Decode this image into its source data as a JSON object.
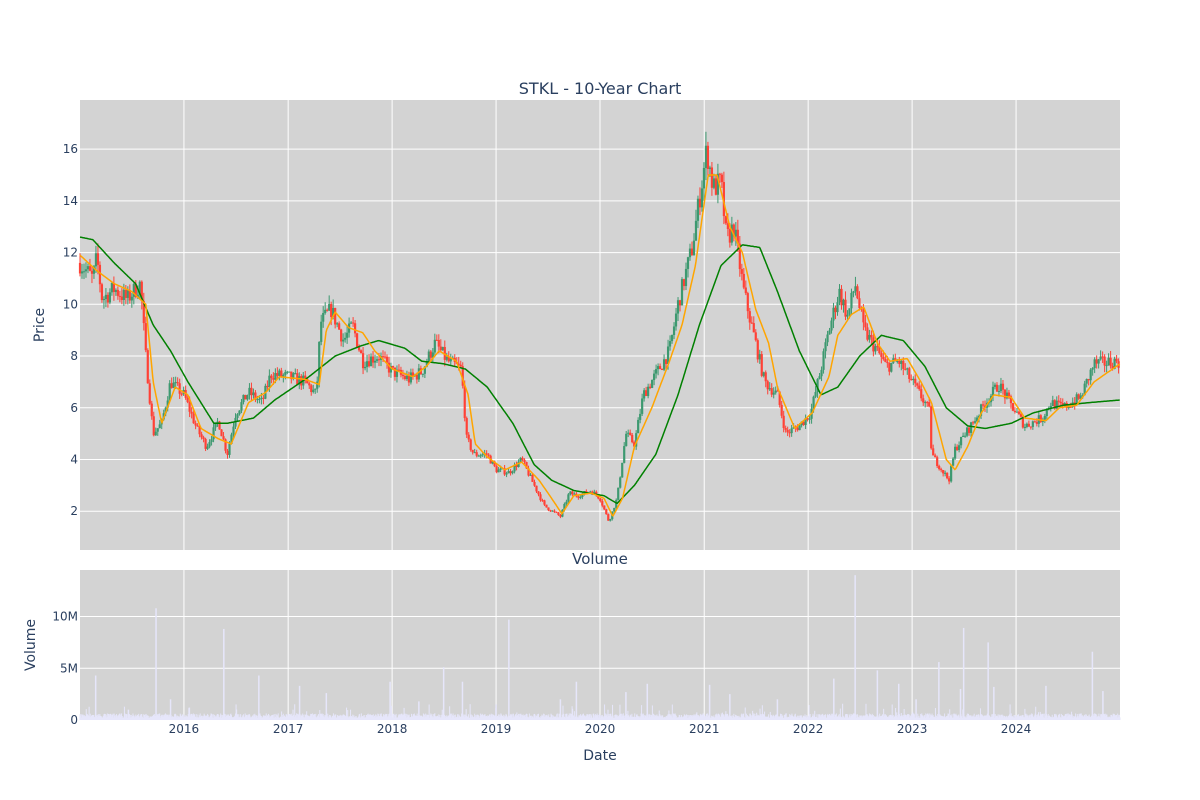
{
  "chart_data": [
    {
      "type": "candlestick",
      "title": "STKL - 10-Year Chart",
      "xlabel": "",
      "ylabel": "Price",
      "xlim": [
        "2015-01-01",
        "2024-12-31"
      ],
      "ylim": [
        0.5,
        17.9
      ],
      "y_ticks": [
        "2",
        "4",
        "6",
        "8",
        "10",
        "12",
        "14",
        "16"
      ],
      "grid": true,
      "plot_background": "#d3d3d3",
      "colors": {
        "up": "#3d9970",
        "down": "#ff4136",
        "ma_short": "#ffa500",
        "ma_long": "#008000"
      },
      "close_anchors": [
        [
          "2015-01-01",
          11.6
        ],
        [
          "2015-02-15",
          11.0
        ],
        [
          "2015-03-01",
          11.8
        ],
        [
          "2015-03-20",
          10.2
        ],
        [
          "2015-05-01",
          10.6
        ],
        [
          "2015-06-15",
          10.2
        ],
        [
          "2015-08-01",
          10.8
        ],
        [
          "2015-08-20",
          8.0
        ],
        [
          "2015-09-15",
          5.0
        ],
        [
          "2015-10-15",
          5.4
        ],
        [
          "2015-11-15",
          7.0
        ],
        [
          "2016-01-01",
          6.5
        ],
        [
          "2016-02-15",
          5.2
        ],
        [
          "2016-03-20",
          4.5
        ],
        [
          "2016-05-01",
          5.5
        ],
        [
          "2016-06-01",
          4.2
        ],
        [
          "2016-07-01",
          5.8
        ],
        [
          "2016-08-15",
          6.6
        ],
        [
          "2016-10-01",
          6.2
        ],
        [
          "2016-11-01",
          7.3
        ],
        [
          "2017-01-01",
          7.2
        ],
        [
          "2017-03-01",
          7.0
        ],
        [
          "2017-04-10",
          6.5
        ],
        [
          "2017-04-25",
          9.3
        ],
        [
          "2017-06-01",
          9.8
        ],
        [
          "2017-07-15",
          8.6
        ],
        [
          "2017-08-15",
          9.2
        ],
        [
          "2017-09-20",
          7.8
        ],
        [
          "2017-11-15",
          8.0
        ],
        [
          "2018-01-01",
          7.4
        ],
        [
          "2018-03-01",
          7.1
        ],
        [
          "2018-04-15",
          7.4
        ],
        [
          "2018-06-01",
          8.5
        ],
        [
          "2018-07-15",
          7.8
        ],
        [
          "2018-09-01",
          7.5
        ],
        [
          "2018-09-20",
          4.8
        ],
        [
          "2018-10-15",
          4.2
        ],
        [
          "2018-12-01",
          4.2
        ],
        [
          "2019-01-01",
          3.6
        ],
        [
          "2019-02-15",
          3.5
        ],
        [
          "2019-04-01",
          4.0
        ],
        [
          "2019-05-15",
          3.0
        ],
        [
          "2019-06-20",
          2.2
        ],
        [
          "2019-08-15",
          1.8
        ],
        [
          "2019-09-15",
          2.7
        ],
        [
          "2019-10-15",
          2.6
        ],
        [
          "2019-12-01",
          2.8
        ],
        [
          "2020-01-01",
          2.5
        ],
        [
          "2020-02-01",
          1.6
        ],
        [
          "2020-03-01",
          2.5
        ],
        [
          "2020-04-01",
          5.0
        ],
        [
          "2020-05-01",
          4.6
        ],
        [
          "2020-06-01",
          6.5
        ],
        [
          "2020-08-01",
          7.6
        ],
        [
          "2020-09-01",
          8.2
        ],
        [
          "2020-10-01",
          10.0
        ],
        [
          "2020-11-20",
          12.2
        ],
        [
          "2021-01-10",
          16.0
        ],
        [
          "2021-02-01",
          14.5
        ],
        [
          "2021-03-01",
          14.7
        ],
        [
          "2021-03-20",
          12.5
        ],
        [
          "2021-04-15",
          13.0
        ],
        [
          "2021-05-20",
          10.5
        ],
        [
          "2021-06-20",
          9.0
        ],
        [
          "2021-08-01",
          7.0
        ],
        [
          "2021-09-15",
          6.5
        ],
        [
          "2021-10-15",
          5.0
        ],
        [
          "2021-12-01",
          5.3
        ],
        [
          "2022-01-10",
          5.8
        ],
        [
          "2022-02-15",
          7.5
        ],
        [
          "2022-03-15",
          9.0
        ],
        [
          "2022-04-20",
          10.5
        ],
        [
          "2022-05-20",
          9.5
        ],
        [
          "2022-06-15",
          10.8
        ],
        [
          "2022-07-15",
          9.0
        ],
        [
          "2022-09-01",
          8.2
        ],
        [
          "2022-10-01",
          7.6
        ],
        [
          "2022-11-15",
          7.8
        ],
        [
          "2023-01-01",
          7.0
        ],
        [
          "2023-02-15",
          6.2
        ],
        [
          "2023-03-05",
          5.8
        ],
        [
          "2023-03-10",
          4.2
        ],
        [
          "2023-05-10",
          3.2
        ],
        [
          "2023-06-01",
          4.4
        ],
        [
          "2023-08-01",
          5.4
        ],
        [
          "2023-09-15",
          6.2
        ],
        [
          "2023-11-01",
          6.9
        ],
        [
          "2023-12-15",
          6.1
        ],
        [
          "2024-02-01",
          5.3
        ],
        [
          "2024-04-01",
          5.6
        ],
        [
          "2024-05-01",
          6.2
        ],
        [
          "2024-06-15",
          6.0
        ],
        [
          "2024-08-15",
          6.4
        ],
        [
          "2024-10-01",
          7.7
        ],
        [
          "2024-12-31",
          7.8
        ]
      ],
      "moving_average_short": [
        [
          "2015-01-01",
          11.9
        ],
        [
          "2015-03-01",
          11.3
        ],
        [
          "2015-05-01",
          10.8
        ],
        [
          "2015-07-01",
          10.5
        ],
        [
          "2015-08-20",
          10.0
        ],
        [
          "2015-09-15",
          7.0
        ],
        [
          "2015-10-15",
          5.4
        ],
        [
          "2015-12-01",
          6.8
        ],
        [
          "2016-01-15",
          6.5
        ],
        [
          "2016-03-01",
          5.2
        ],
        [
          "2016-05-01",
          4.8
        ],
        [
          "2016-06-15",
          4.6
        ],
        [
          "2016-08-15",
          6.2
        ],
        [
          "2016-10-15",
          6.6
        ],
        [
          "2016-12-01",
          7.2
        ],
        [
          "2017-03-01",
          7.1
        ],
        [
          "2017-04-20",
          6.9
        ],
        [
          "2017-05-15",
          9.0
        ],
        [
          "2017-06-15",
          9.7
        ],
        [
          "2017-08-01",
          9.1
        ],
        [
          "2017-09-20",
          8.9
        ],
        [
          "2017-11-01",
          8.2
        ],
        [
          "2018-01-01",
          7.5
        ],
        [
          "2018-03-15",
          7.2
        ],
        [
          "2018-05-01",
          7.6
        ],
        [
          "2018-06-15",
          8.2
        ],
        [
          "2018-08-15",
          7.8
        ],
        [
          "2018-09-25",
          6.5
        ],
        [
          "2018-10-20",
          4.6
        ],
        [
          "2018-12-01",
          4.1
        ],
        [
          "2019-02-01",
          3.6
        ],
        [
          "2019-04-01",
          3.9
        ],
        [
          "2019-06-01",
          3.2
        ],
        [
          "2019-07-15",
          2.5
        ],
        [
          "2019-08-20",
          1.9
        ],
        [
          "2019-10-01",
          2.6
        ],
        [
          "2019-12-01",
          2.7
        ],
        [
          "2020-01-15",
          2.5
        ],
        [
          "2020-02-15",
          1.8
        ],
        [
          "2020-03-20",
          2.5
        ],
        [
          "2020-05-01",
          4.5
        ],
        [
          "2020-07-01",
          6.0
        ],
        [
          "2020-09-01",
          7.8
        ],
        [
          "2020-10-15",
          9.2
        ],
        [
          "2020-12-01",
          11.5
        ],
        [
          "2021-01-15",
          15.0
        ],
        [
          "2021-02-15",
          15.0
        ],
        [
          "2021-04-01",
          13.0
        ],
        [
          "2021-05-15",
          12.0
        ],
        [
          "2021-07-01",
          9.8
        ],
        [
          "2021-08-15",
          8.5
        ],
        [
          "2021-09-15",
          6.8
        ],
        [
          "2021-11-15",
          5.2
        ],
        [
          "2022-01-15",
          5.8
        ],
        [
          "2022-03-15",
          7.2
        ],
        [
          "2022-04-15",
          8.8
        ],
        [
          "2022-06-01",
          9.6
        ],
        [
          "2022-07-15",
          9.9
        ],
        [
          "2022-09-01",
          8.5
        ],
        [
          "2022-10-15",
          7.8
        ],
        [
          "2022-12-15",
          7.9
        ],
        [
          "2023-02-01",
          7.0
        ],
        [
          "2023-03-10",
          6.2
        ],
        [
          "2023-05-01",
          4.0
        ],
        [
          "2023-06-01",
          3.6
        ],
        [
          "2023-07-15",
          4.5
        ],
        [
          "2023-09-01",
          5.8
        ],
        [
          "2023-10-15",
          6.5
        ],
        [
          "2023-12-15",
          6.4
        ],
        [
          "2024-02-01",
          5.6
        ],
        [
          "2024-04-15",
          5.5
        ],
        [
          "2024-06-01",
          6.0
        ],
        [
          "2024-08-01",
          6.1
        ],
        [
          "2024-10-01",
          7.0
        ],
        [
          "2024-12-31",
          7.7
        ]
      ],
      "moving_average_long": [
        [
          "2015-01-01",
          12.6
        ],
        [
          "2015-02-15",
          12.5
        ],
        [
          "2015-05-01",
          11.6
        ],
        [
          "2015-07-15",
          10.8
        ],
        [
          "2015-09-15",
          9.2
        ],
        [
          "2015-11-15",
          8.2
        ],
        [
          "2016-01-15",
          7.0
        ],
        [
          "2016-04-15",
          5.4
        ],
        [
          "2016-06-01",
          5.4
        ],
        [
          "2016-09-01",
          5.6
        ],
        [
          "2016-11-15",
          6.3
        ],
        [
          "2017-03-15",
          7.2
        ],
        [
          "2017-06-15",
          8.0
        ],
        [
          "2017-09-15",
          8.4
        ],
        [
          "2017-11-15",
          8.6
        ],
        [
          "2018-02-15",
          8.3
        ],
        [
          "2018-04-15",
          7.8
        ],
        [
          "2018-07-01",
          7.7
        ],
        [
          "2018-09-15",
          7.5
        ],
        [
          "2018-12-01",
          6.8
        ],
        [
          "2019-03-01",
          5.4
        ],
        [
          "2019-05-15",
          3.8
        ],
        [
          "2019-07-15",
          3.2
        ],
        [
          "2019-10-01",
          2.8
        ],
        [
          "2020-01-15",
          2.6
        ],
        [
          "2020-03-01",
          2.3
        ],
        [
          "2020-05-01",
          3.0
        ],
        [
          "2020-07-15",
          4.2
        ],
        [
          "2020-10-01",
          6.5
        ],
        [
          "2020-12-15",
          9.2
        ],
        [
          "2021-03-01",
          11.5
        ],
        [
          "2021-05-15",
          12.3
        ],
        [
          "2021-07-15",
          12.2
        ],
        [
          "2021-09-15",
          10.5
        ],
        [
          "2021-12-01",
          8.2
        ],
        [
          "2022-02-15",
          6.5
        ],
        [
          "2022-04-15",
          6.8
        ],
        [
          "2022-07-01",
          8.0
        ],
        [
          "2022-09-15",
          8.8
        ],
        [
          "2022-12-01",
          8.6
        ],
        [
          "2023-02-15",
          7.6
        ],
        [
          "2023-05-01",
          6.0
        ],
        [
          "2023-07-15",
          5.3
        ],
        [
          "2023-09-15",
          5.2
        ],
        [
          "2023-12-15",
          5.4
        ],
        [
          "2024-03-01",
          5.8
        ],
        [
          "2024-06-15",
          6.1
        ],
        [
          "2024-09-15",
          6.2
        ],
        [
          "2024-12-31",
          6.3
        ]
      ]
    },
    {
      "type": "bar",
      "title": "Volume",
      "xlabel": "Date",
      "ylabel": "Volume",
      "xlim": [
        "2015-01-01",
        "2024-12-31"
      ],
      "ylim": [
        0,
        14500000
      ],
      "y_ticks": [
        "0",
        "5M",
        "10M"
      ],
      "x_ticks": [
        "2016",
        "2017",
        "2018",
        "2019",
        "2020",
        "2021",
        "2022",
        "2023",
        "2024"
      ],
      "grid": true,
      "plot_background": "#d3d3d3",
      "bar_color": "#e6e6fa",
      "baseline_volume": 400000,
      "spikes": [
        [
          "2015-02-25",
          4300000
        ],
        [
          "2015-06-20",
          1000000
        ],
        [
          "2015-09-25",
          10800000
        ],
        [
          "2015-11-15",
          2000000
        ],
        [
          "2016-01-20",
          1200000
        ],
        [
          "2016-05-20",
          8800000
        ],
        [
          "2016-09-20",
          4300000
        ],
        [
          "2017-02-10",
          3300000
        ],
        [
          "2017-05-15",
          2600000
        ],
        [
          "2017-12-25",
          3700000
        ],
        [
          "2018-04-05",
          1800000
        ],
        [
          "2018-07-01",
          5100000
        ],
        [
          "2018-09-05",
          3700000
        ],
        [
          "2019-01-01",
          1500000
        ],
        [
          "2019-02-15",
          9700000
        ],
        [
          "2019-08-15",
          2000000
        ],
        [
          "2019-10-10",
          3700000
        ],
        [
          "2020-04-01",
          2700000
        ],
        [
          "2020-06-15",
          3500000
        ],
        [
          "2021-01-20",
          3400000
        ],
        [
          "2021-04-01",
          2500000
        ],
        [
          "2021-09-15",
          2000000
        ],
        [
          "2022-04-01",
          4000000
        ],
        [
          "2022-06-15",
          14000000
        ],
        [
          "2022-09-01",
          4800000
        ],
        [
          "2022-11-15",
          3500000
        ],
        [
          "2023-01-15",
          2000000
        ],
        [
          "2023-04-05",
          5600000
        ],
        [
          "2023-06-20",
          3000000
        ],
        [
          "2023-07-01",
          8900000
        ],
        [
          "2023-09-25",
          7500000
        ],
        [
          "2023-10-15",
          3200000
        ],
        [
          "2024-04-15",
          3300000
        ],
        [
          "2024-09-25",
          6600000
        ],
        [
          "2024-11-01",
          2800000
        ]
      ]
    }
  ]
}
